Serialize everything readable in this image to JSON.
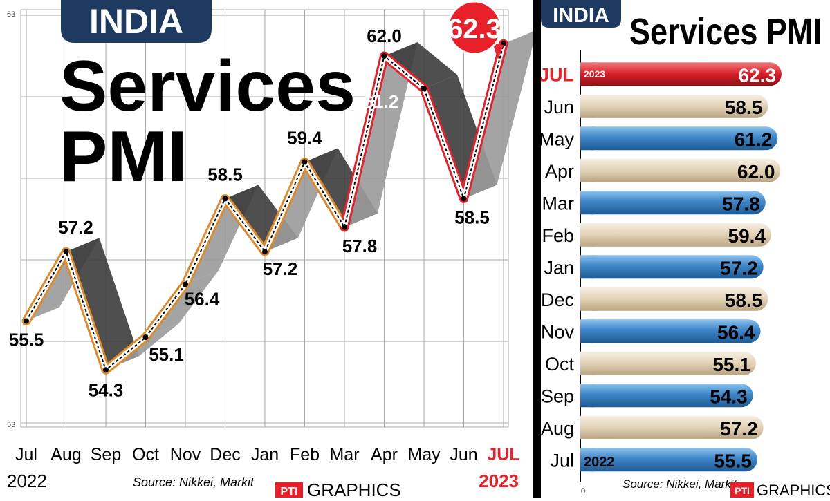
{
  "colors": {
    "badge": "#1f3a60",
    "accent_red": "#e8202a",
    "line_orange": "#e0892a",
    "bar_blue": "#3f86c8",
    "bar_beige": "#e6d8c0",
    "grid": "#a8a8a8",
    "ribbon": "#7a7a7a"
  },
  "left_chart": {
    "badge": "INDIA",
    "title_line1": "Services",
    "title_line2": "PMI",
    "y_top_tick": "63",
    "y_bottom_tick": "53",
    "highlight_value": "62.3",
    "start_year": "2022",
    "end_year": "2023",
    "source": "Source: Nikkei, Markit",
    "credit_logo": "PTI",
    "credit_text": "GRAPHICS"
  },
  "right_chart": {
    "badge": "INDIA",
    "title": "Services PMI",
    "highlight_year": "2023",
    "start_year": "2022",
    "zero_tick": "0",
    "source": "Source: Nikkei, Markit",
    "credit_logo": "PTI",
    "credit_text": "GRAPHICS"
  },
  "chart_data": [
    {
      "type": "line",
      "title": "Services PMI",
      "categories": [
        "Jul",
        "Aug",
        "Sep",
        "Oct",
        "Nov",
        "Dec",
        "Jan",
        "Feb",
        "Mar",
        "Apr",
        "May",
        "Jun",
        "JUL"
      ],
      "values": [
        55.5,
        57.2,
        54.3,
        55.1,
        56.4,
        58.5,
        57.2,
        59.4,
        57.8,
        62.0,
        61.2,
        58.5,
        62.3
      ],
      "labels": [
        "55.5",
        "57.2",
        "54.3",
        "55.1",
        "56.4",
        "58.5",
        "57.2",
        "59.4",
        "57.8",
        "62.0",
        "61.2",
        "58.5",
        "62.3"
      ],
      "ylim": [
        53,
        63
      ],
      "grid": true
    },
    {
      "type": "bar",
      "title": "Services PMI",
      "categories": [
        "JUL",
        "Jun",
        "May",
        "Apr",
        "Mar",
        "Feb",
        "Jan",
        "Dec",
        "Nov",
        "Oct",
        "Sep",
        "Aug",
        "Jul"
      ],
      "values": [
        62.3,
        58.5,
        61.2,
        62.0,
        57.8,
        59.4,
        57.2,
        58.5,
        56.4,
        55.1,
        54.3,
        57.2,
        55.5
      ],
      "labels": [
        "62.3",
        "58.5",
        "61.2",
        "62.0",
        "57.8",
        "59.4",
        "57.2",
        "58.5",
        "56.4",
        "55.1",
        "54.3",
        "57.2",
        "55.5"
      ],
      "bar_colors": [
        "red",
        "beige",
        "blue",
        "beige",
        "blue",
        "beige",
        "blue",
        "beige",
        "blue",
        "beige",
        "blue",
        "beige",
        "blue"
      ],
      "orientation": "horizontal",
      "xlim": [
        0,
        66
      ]
    }
  ]
}
